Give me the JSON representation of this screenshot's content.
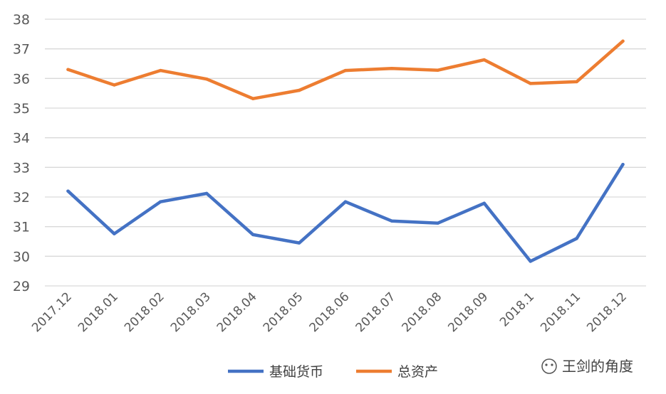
{
  "chart_data": {
    "type": "line",
    "title": "",
    "xlabel": "",
    "ylabel": "",
    "categories": [
      "2017.12",
      "2018.01",
      "2018.02",
      "2018.03",
      "2018.04",
      "2018.05",
      "2018.06",
      "2018.07",
      "2018.08",
      "2018.09",
      "2018.1",
      "2018.11",
      "2018.12"
    ],
    "ylim": [
      29,
      38
    ],
    "yticks": [
      29,
      30,
      31,
      32,
      33,
      34,
      35,
      36,
      37,
      38
    ],
    "grid": true,
    "legend_position": "bottom",
    "series": [
      {
        "name": "基础货币",
        "color": "#4472C4",
        "values": [
          32.2,
          30.76,
          31.84,
          32.12,
          30.73,
          30.45,
          31.84,
          31.19,
          31.12,
          31.79,
          29.83,
          30.6,
          33.1
        ]
      },
      {
        "name": "总资产",
        "color": "#ED7D31",
        "values": [
          36.3,
          35.78,
          36.27,
          35.98,
          35.32,
          35.6,
          36.27,
          36.34,
          36.28,
          36.63,
          35.83,
          35.89,
          37.26
        ]
      }
    ]
  },
  "watermark": {
    "text": "王剑的角度"
  }
}
